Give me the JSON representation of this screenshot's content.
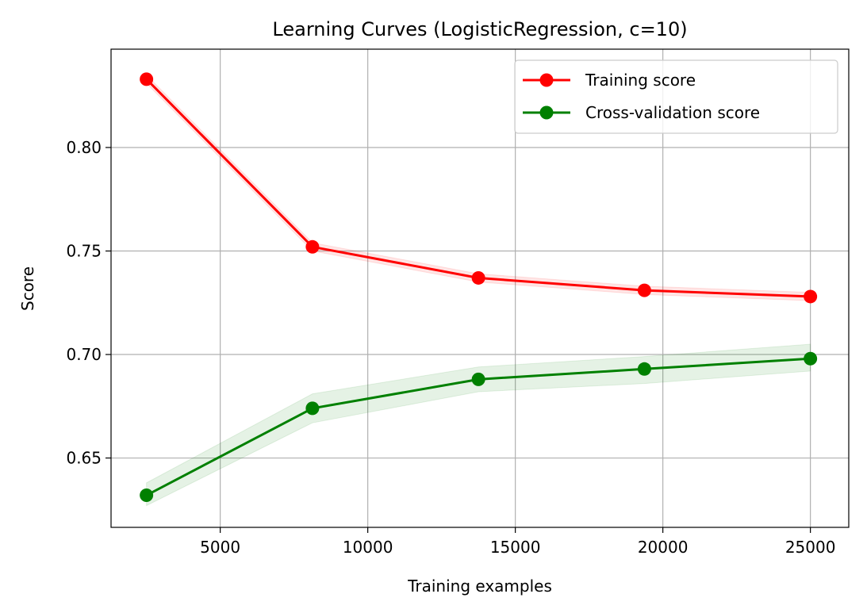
{
  "chart_data": {
    "type": "line",
    "title": "Learning Curves (LogisticRegression, c=10)",
    "xlabel": "Training examples",
    "ylabel": "Score",
    "xlim": [
      1300,
      26300
    ],
    "ylim": [
      0.6165,
      0.8475
    ],
    "x_ticks": [
      5000,
      10000,
      15000,
      20000,
      25000
    ],
    "x_tick_labels": [
      "5000",
      "10000",
      "15000",
      "20000",
      "25000"
    ],
    "y_ticks": [
      0.65,
      0.7,
      0.75,
      0.8
    ],
    "y_tick_labels": [
      "0.65",
      "0.70",
      "0.75",
      "0.80"
    ],
    "grid": true,
    "legend_position": "top-right",
    "x": [
      2500,
      8125,
      13750,
      19375,
      25000
    ],
    "series": [
      {
        "name": "Training score",
        "color": "#ff0000",
        "band_color": "#ff0000",
        "values": [
          0.833,
          0.752,
          0.737,
          0.731,
          0.728
        ],
        "lower": [
          0.831,
          0.75,
          0.735,
          0.729,
          0.726
        ],
        "upper": [
          0.835,
          0.754,
          0.739,
          0.733,
          0.73
        ]
      },
      {
        "name": "Cross-validation score",
        "color": "#008000",
        "band_color": "#008000",
        "values": [
          0.632,
          0.674,
          0.688,
          0.693,
          0.698
        ],
        "lower": [
          0.627,
          0.667,
          0.682,
          0.686,
          0.692
        ],
        "upper": [
          0.638,
          0.681,
          0.694,
          0.699,
          0.705
        ]
      }
    ]
  }
}
